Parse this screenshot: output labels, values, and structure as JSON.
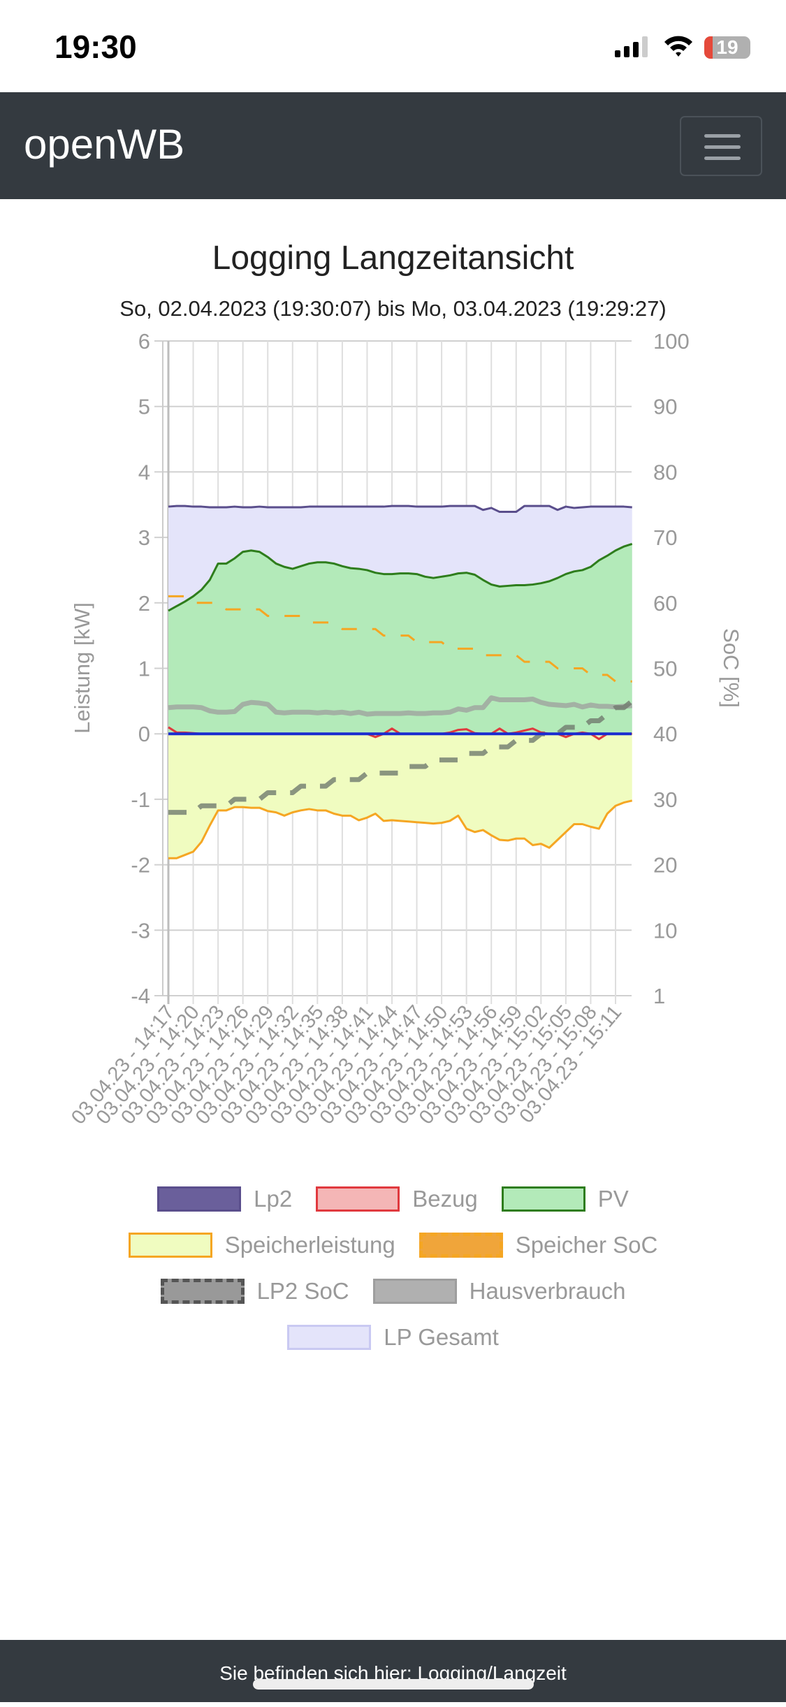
{
  "status_bar": {
    "time": "19:30",
    "battery": "19"
  },
  "nav": {
    "brand": "openWB"
  },
  "page": {
    "title": "Logging Langzeitansicht",
    "subtitle": "So, 02.04.2023 (19:30:07) bis Mo, 03.04.2023 (19:29:27)"
  },
  "footer": {
    "text": "Sie befinden sich hier: Logging/Langzeit"
  },
  "chart_data": {
    "type": "line",
    "title": "Logging Langzeitansicht",
    "ylabel": "Leistung [kW]",
    "ylim": [
      -4,
      6
    ],
    "yticks": [
      "6",
      "5",
      "4",
      "3",
      "2",
      "1",
      "0",
      "-1",
      "-2",
      "-3",
      "-4"
    ],
    "y2label": "SoC [%]",
    "y2lim": [
      0,
      100
    ],
    "y2ticks": [
      "100",
      "90",
      "80",
      "70",
      "60",
      "50",
      "40",
      "30",
      "20",
      "10",
      "1"
    ],
    "xticks": [
      "03.04.23 - 14:17",
      "03.04.23 - 14:20",
      "03.04.23 - 14:23",
      "03.04.23 - 14:26",
      "03.04.23 - 14:29",
      "03.04.23 - 14:32",
      "03.04.23 - 14:35",
      "03.04.23 - 14:38",
      "03.04.23 - 14:41",
      "03.04.23 - 14:44",
      "03.04.23 - 14:47",
      "03.04.23 - 14:50",
      "03.04.23 - 14:53",
      "03.04.23 - 14:56",
      "03.04.23 - 14:59",
      "03.04.23 - 15:02",
      "03.04.23 - 15:05",
      "03.04.23 - 15:08",
      "03.04.23 - 15:11"
    ],
    "x_step_minutes": 1,
    "grid": true,
    "legend": "bottom",
    "series": [
      {
        "name": "LP Gesamt",
        "axis": "left",
        "color": "#c9c9f2",
        "fill": "#e4e4fa",
        "values": [
          3.47,
          3.48,
          3.48,
          3.47,
          3.47,
          3.46,
          3.46,
          3.46,
          3.47,
          3.46,
          3.46,
          3.47,
          3.46,
          3.46,
          3.46,
          3.46,
          3.46,
          3.47,
          3.47,
          3.47,
          3.47,
          3.47,
          3.47,
          3.47,
          3.47,
          3.47,
          3.47,
          3.48,
          3.48,
          3.48,
          3.47,
          3.47,
          3.47,
          3.47,
          3.48,
          3.48,
          3.48,
          3.48,
          3.42,
          3.45,
          3.39,
          3.39,
          3.39,
          3.48,
          3.48,
          3.48,
          3.48,
          3.42,
          3.47,
          3.45,
          3.46,
          3.47,
          3.47,
          3.47,
          3.47,
          3.47,
          3.46
        ]
      },
      {
        "name": "Lp2",
        "axis": "left",
        "color": "#5a4e8c",
        "fill": "#6a5f9b",
        "values": [
          3.47,
          3.48,
          3.48,
          3.47,
          3.47,
          3.46,
          3.46,
          3.46,
          3.47,
          3.46,
          3.46,
          3.47,
          3.46,
          3.46,
          3.46,
          3.46,
          3.46,
          3.47,
          3.47,
          3.47,
          3.47,
          3.47,
          3.47,
          3.47,
          3.47,
          3.47,
          3.47,
          3.48,
          3.48,
          3.48,
          3.47,
          3.47,
          3.47,
          3.47,
          3.48,
          3.48,
          3.48,
          3.48,
          3.42,
          3.45,
          3.39,
          3.39,
          3.39,
          3.48,
          3.48,
          3.48,
          3.48,
          3.42,
          3.47,
          3.45,
          3.46,
          3.47,
          3.47,
          3.47,
          3.47,
          3.47,
          3.46
        ]
      },
      {
        "name": "PV",
        "axis": "left",
        "color": "#2e7d1c",
        "fill": "#b3eab9",
        "values": [
          1.88,
          1.95,
          2.02,
          2.1,
          2.2,
          2.35,
          2.6,
          2.6,
          2.68,
          2.78,
          2.8,
          2.78,
          2.7,
          2.6,
          2.55,
          2.52,
          2.56,
          2.6,
          2.62,
          2.62,
          2.6,
          2.56,
          2.53,
          2.52,
          2.5,
          2.46,
          2.44,
          2.44,
          2.45,
          2.45,
          2.44,
          2.4,
          2.38,
          2.4,
          2.42,
          2.45,
          2.46,
          2.43,
          2.35,
          2.28,
          2.25,
          2.26,
          2.27,
          2.27,
          2.28,
          2.3,
          2.33,
          2.38,
          2.44,
          2.48,
          2.5,
          2.55,
          2.65,
          2.72,
          2.8,
          2.86,
          2.9
        ]
      },
      {
        "name": "Speicherleistung",
        "axis": "left",
        "color": "#f5a623",
        "fill": "#f0fcc0",
        "values": [
          -1.9,
          -1.9,
          -1.85,
          -1.8,
          -1.65,
          -1.4,
          -1.17,
          -1.17,
          -1.12,
          -1.12,
          -1.13,
          -1.13,
          -1.18,
          -1.2,
          -1.25,
          -1.2,
          -1.17,
          -1.15,
          -1.17,
          -1.17,
          -1.22,
          -1.25,
          -1.25,
          -1.32,
          -1.28,
          -1.22,
          -1.33,
          -1.32,
          -1.33,
          -1.34,
          -1.35,
          -1.36,
          -1.37,
          -1.36,
          -1.33,
          -1.25,
          -1.45,
          -1.5,
          -1.47,
          -1.55,
          -1.62,
          -1.63,
          -1.6,
          -1.6,
          -1.7,
          -1.68,
          -1.74,
          -1.62,
          -1.5,
          -1.38,
          -1.38,
          -1.42,
          -1.45,
          -1.22,
          -1.1,
          -1.05,
          -1.02
        ]
      },
      {
        "name": "Hausverbrauch",
        "axis": "left",
        "color": "#9e9e9e",
        "fill": "#b0b0b0",
        "values": [
          0.4,
          0.41,
          0.41,
          0.41,
          0.4,
          0.35,
          0.33,
          0.33,
          0.34,
          0.45,
          0.48,
          0.47,
          0.45,
          0.33,
          0.32,
          0.33,
          0.33,
          0.33,
          0.32,
          0.33,
          0.32,
          0.33,
          0.31,
          0.33,
          0.3,
          0.31,
          0.31,
          0.31,
          0.31,
          0.32,
          0.31,
          0.31,
          0.32,
          0.32,
          0.33,
          0.38,
          0.36,
          0.4,
          0.4,
          0.55,
          0.52,
          0.52,
          0.52,
          0.52,
          0.53,
          0.48,
          0.45,
          0.44,
          0.43,
          0.45,
          0.41,
          0.44,
          0.42,
          0.42,
          0.41,
          0.42,
          0.43
        ]
      },
      {
        "name": "Bezug",
        "axis": "left",
        "color": "#e0393e",
        "fill": "#f4b6b6",
        "values": [
          0.1,
          0.02,
          0.02,
          0.01,
          0,
          0,
          0,
          0,
          0,
          0,
          0,
          0,
          0,
          0,
          0,
          0,
          0,
          0,
          0,
          0,
          0,
          0,
          0,
          0,
          0,
          -0.05,
          0,
          0.08,
          0,
          0,
          0,
          0,
          0,
          0,
          0.02,
          0.06,
          0.07,
          0.01,
          0,
          0,
          0.08,
          0,
          0.02,
          0.05,
          0.08,
          0.02,
          0,
          0,
          -0.05,
          0,
          0.02,
          0,
          -0.08,
          0,
          0,
          0,
          0
        ]
      },
      {
        "name": "Speicher SoC",
        "axis": "right",
        "color": "#f5a623",
        "fill": "#f0a53a",
        "dashed": true,
        "values": [
          61,
          61,
          61,
          60,
          60,
          60,
          60,
          59,
          59,
          59,
          59,
          59,
          58,
          58,
          58,
          58,
          58,
          57,
          57,
          57,
          57,
          56,
          56,
          56,
          56,
          56,
          55,
          55,
          55,
          55,
          54,
          54,
          54,
          54,
          53,
          53,
          53,
          53,
          52,
          52,
          52,
          52,
          52,
          51,
          51,
          51,
          51,
          50,
          50,
          50,
          50,
          49,
          49,
          49,
          48,
          48,
          48
        ]
      },
      {
        "name": "LP2 SoC",
        "axis": "right",
        "color": "#707a6e",
        "fill": "#999999",
        "dashed": true,
        "values": [
          28,
          28,
          28,
          28,
          29,
          29,
          29,
          29,
          30,
          30,
          30,
          30,
          31,
          31,
          31,
          31,
          32,
          32,
          32,
          32,
          33,
          33,
          33,
          33,
          34,
          34,
          34,
          34,
          34,
          35,
          35,
          35,
          36,
          36,
          36,
          36,
          37,
          37,
          37,
          38,
          38,
          38,
          39,
          39,
          39,
          40,
          40,
          40,
          41,
          41,
          41,
          42,
          42,
          43,
          44,
          44,
          45
        ]
      }
    ]
  }
}
